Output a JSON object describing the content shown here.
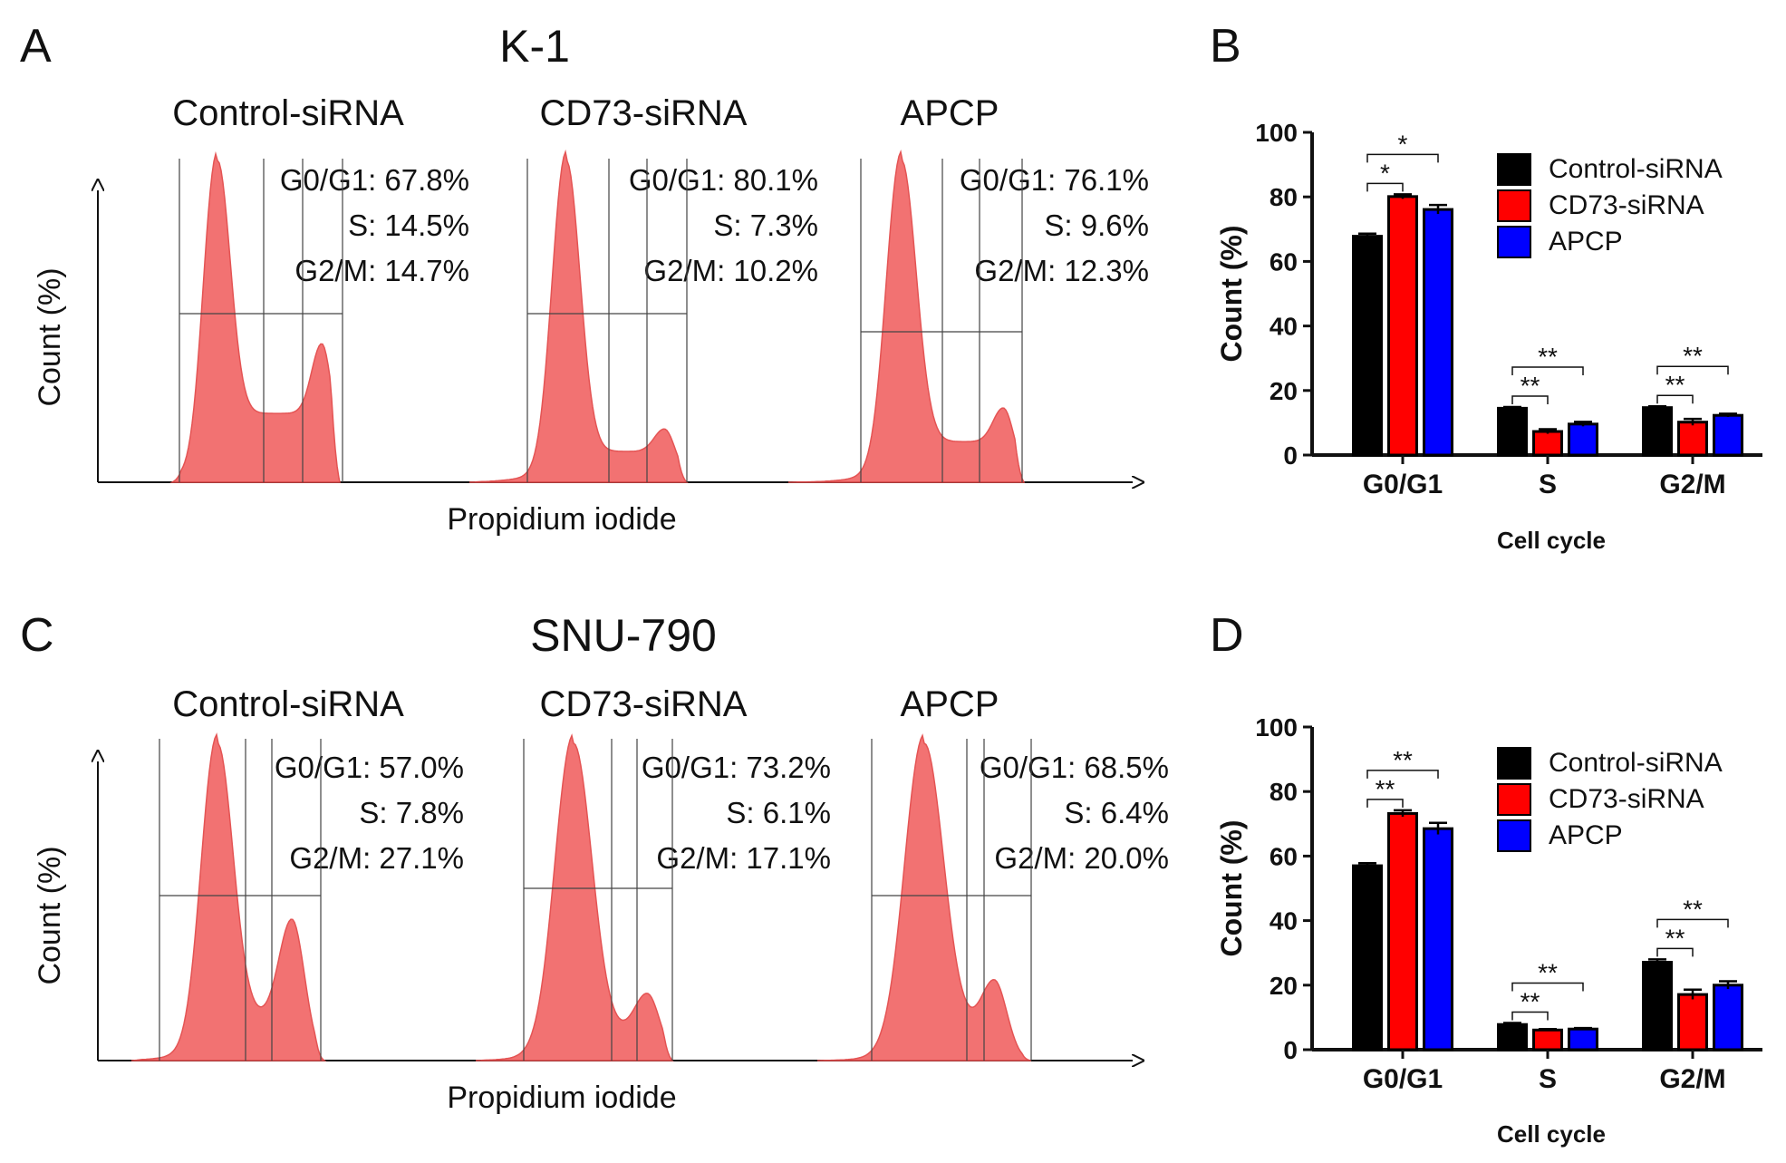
{
  "chart_data": [
    {
      "panel": "A",
      "type": "area",
      "title": "K-1",
      "xlabel": "Propidium iodide",
      "ylabel": "Count (%)",
      "subplots": [
        {
          "title": "Control-siRNA",
          "stats": [
            "G0/G1: 67.8%",
            "S: 14.5%",
            "G2/M: 14.7%"
          ],
          "g0g1": 67.8,
          "s": 14.5,
          "g2m": 14.7
        },
        {
          "title": "CD73-siRNA",
          "stats": [
            "G0/G1: 80.1%",
            "S: 7.3%",
            "G2/M: 10.2%"
          ],
          "g0g1": 80.1,
          "s": 7.3,
          "g2m": 10.2
        },
        {
          "title": "APCP",
          "stats": [
            "G0/G1: 76.1%",
            "S: 9.6%",
            "G2/M: 12.3%"
          ],
          "g0g1": 76.1,
          "s": 9.6,
          "g2m": 12.3
        }
      ],
      "fill_color": "#f26b6b"
    },
    {
      "panel": "B",
      "type": "bar",
      "xlabel": "Cell cycle",
      "ylabel": "Count (%)",
      "ylim": [
        0,
        100
      ],
      "yticks": [
        "0",
        "20",
        "40",
        "60",
        "80",
        "100"
      ],
      "categories": [
        "G0/G1",
        "S",
        "G2/M"
      ],
      "legend_position": "top-right",
      "series": [
        {
          "name": "Control-siRNA",
          "values": [
            67.8,
            14.5,
            14.7
          ],
          "errors": [
            0.8,
            0.4,
            0.4
          ],
          "color": "#000000"
        },
        {
          "name": "CD73-siRNA",
          "values": [
            80.1,
            7.3,
            10.2
          ],
          "errors": [
            0.7,
            0.7,
            1.0
          ],
          "color": "#ff0000"
        },
        {
          "name": "APCP",
          "values": [
            76.1,
            9.6,
            12.3
          ],
          "errors": [
            1.4,
            0.7,
            0.5
          ],
          "color": "#0000ff"
        }
      ],
      "significance": [
        {
          "category": "G0/G1",
          "pairs": [
            {
              "from": 0,
              "to": 1,
              "label": "*"
            },
            {
              "from": 0,
              "to": 2,
              "label": "*"
            }
          ]
        },
        {
          "category": "S",
          "pairs": [
            {
              "from": 0,
              "to": 1,
              "label": "**"
            },
            {
              "from": 0,
              "to": 2,
              "label": "**"
            }
          ]
        },
        {
          "category": "G2/M",
          "pairs": [
            {
              "from": 0,
              "to": 1,
              "label": "**"
            },
            {
              "from": 0,
              "to": 2,
              "label": "**"
            }
          ]
        }
      ]
    },
    {
      "panel": "C",
      "type": "area",
      "title": "SNU-790",
      "xlabel": "Propidium iodide",
      "ylabel": "Count (%)",
      "subplots": [
        {
          "title": "Control-siRNA",
          "stats": [
            "G0/G1: 57.0%",
            "S: 7.8%",
            "G2/M: 27.1%"
          ],
          "g0g1": 57.0,
          "s": 7.8,
          "g2m": 27.1
        },
        {
          "title": "CD73-siRNA",
          "stats": [
            "G0/G1: 73.2%",
            "S: 6.1%",
            "G2/M: 17.1%"
          ],
          "g0g1": 73.2,
          "s": 6.1,
          "g2m": 17.1
        },
        {
          "title": "APCP",
          "stats": [
            "G0/G1: 68.5%",
            "S: 6.4%",
            "G2/M: 20.0%"
          ],
          "g0g1": 68.5,
          "s": 6.4,
          "g2m": 20.0
        }
      ],
      "fill_color": "#f26b6b"
    },
    {
      "panel": "D",
      "type": "bar",
      "xlabel": "Cell cycle",
      "ylabel": "Count (%)",
      "ylim": [
        0,
        100
      ],
      "yticks": [
        "0",
        "20",
        "40",
        "60",
        "80",
        "100"
      ],
      "categories": [
        "G0/G1",
        "S",
        "G2/M"
      ],
      "legend_position": "top-right",
      "series": [
        {
          "name": "Control-siRNA",
          "values": [
            57.0,
            7.8,
            27.1
          ],
          "errors": [
            0.8,
            0.5,
            0.9
          ],
          "color": "#000000"
        },
        {
          "name": "CD73-siRNA",
          "values": [
            73.2,
            6.1,
            17.1
          ],
          "errors": [
            1.0,
            0.3,
            1.5
          ],
          "color": "#ff0000"
        },
        {
          "name": "APCP",
          "values": [
            68.5,
            6.4,
            20.0
          ],
          "errors": [
            1.8,
            0.3,
            1.2
          ],
          "color": "#0000ff"
        }
      ],
      "significance": [
        {
          "category": "G0/G1",
          "pairs": [
            {
              "from": 0,
              "to": 1,
              "label": "**"
            },
            {
              "from": 0,
              "to": 2,
              "label": "**"
            }
          ]
        },
        {
          "category": "S",
          "pairs": [
            {
              "from": 0,
              "to": 1,
              "label": "**"
            },
            {
              "from": 0,
              "to": 2,
              "label": "**"
            }
          ]
        },
        {
          "category": "G2/M",
          "pairs": [
            {
              "from": 0,
              "to": 1,
              "label": "**"
            },
            {
              "from": 0,
              "to": 2,
              "label": "**"
            }
          ]
        }
      ]
    }
  ]
}
